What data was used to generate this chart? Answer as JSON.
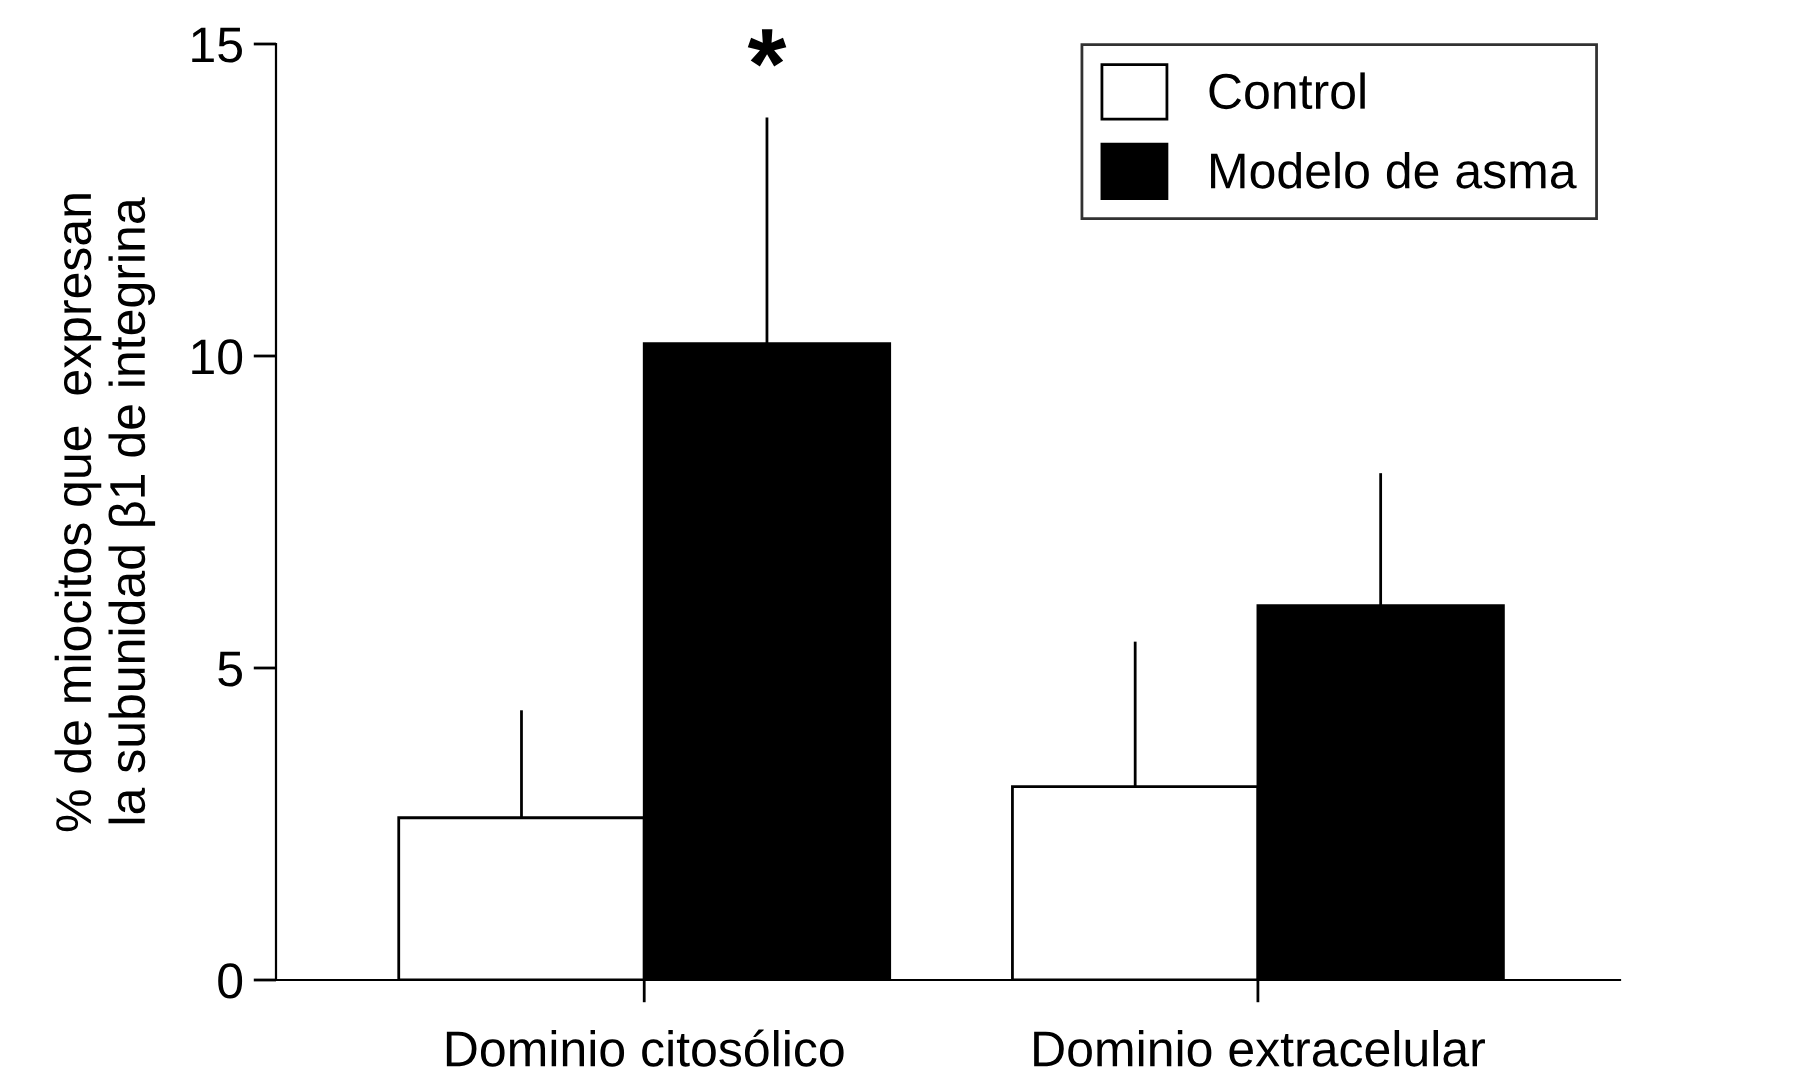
{
  "chart_data": {
    "type": "bar",
    "ylabel": "% de miocitos que  expresan\nla subunidad β1 de integrina",
    "categories": [
      "Dominio citosólico",
      "Dominio extracelular"
    ],
    "series": [
      {
        "name": "Control",
        "color": "#ffffff",
        "values": [
          2.6,
          3.1
        ],
        "errors": [
          [
            2.6,
            4.3
          ],
          [
            3.1,
            5.4
          ]
        ]
      },
      {
        "name": "Modelo de asma",
        "color": "#000000",
        "values": [
          10.2,
          6.0
        ],
        "errors": [
          [
            10.2,
            13.8
          ],
          [
            6.0,
            8.1
          ]
        ]
      }
    ],
    "ylim": [
      0,
      15
    ],
    "yticks": [
      0,
      5,
      10,
      15
    ],
    "grid": false,
    "legend": "top right",
    "annotations": [
      "*"
    ]
  }
}
